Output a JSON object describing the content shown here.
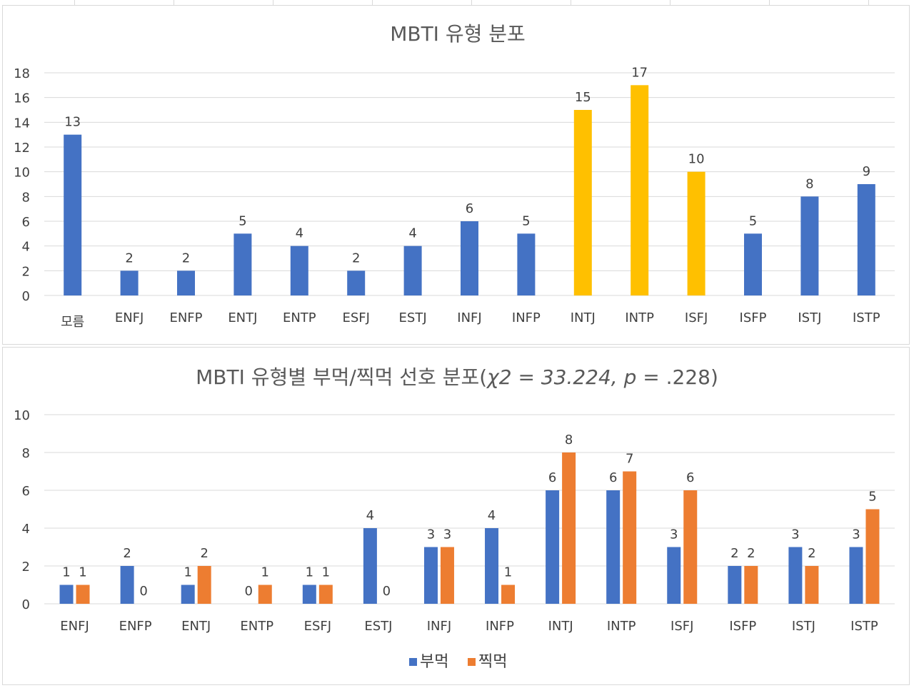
{
  "colors": {
    "blue": "#4472c4",
    "orange": "#ed7d31",
    "gold": "#ffc000",
    "grid": "#d9d9d9",
    "text": "#404040",
    "title": "#595959"
  },
  "chart_data": [
    {
      "type": "bar",
      "title": "MBTI 유형 분포",
      "categories": [
        "모름",
        "ENFJ",
        "ENFP",
        "ENTJ",
        "ENTP",
        "ESFJ",
        "ESTJ",
        "INFJ",
        "INFP",
        "INTJ",
        "INTP",
        "ISFJ",
        "ISFP",
        "ISTJ",
        "ISTP"
      ],
      "values": [
        13,
        2,
        2,
        5,
        4,
        2,
        4,
        6,
        5,
        15,
        17,
        10,
        5,
        8,
        9
      ],
      "highlight": [
        "INTJ",
        "INTP",
        "ISFJ"
      ],
      "ylim": [
        0,
        18
      ],
      "yticks": [
        0,
        2,
        4,
        6,
        8,
        10,
        12,
        14,
        16,
        18
      ],
      "grid": true,
      "legend": "none"
    },
    {
      "type": "bar",
      "title": "MBTI 유형별 부먹/찍먹 선호 분포(",
      "title_stat": "χ2 = 33.224,",
      "title_p": "p",
      "title_tail": " = .228)",
      "categories": [
        "ENFJ",
        "ENFP",
        "ENTJ",
        "ENTP",
        "ESFJ",
        "ESTJ",
        "INFJ",
        "INFP",
        "INTJ",
        "INTP",
        "ISFJ",
        "ISFP",
        "ISTJ",
        "ISTP"
      ],
      "series": [
        {
          "name": "부먹",
          "values": [
            1,
            2,
            1,
            0,
            1,
            4,
            3,
            4,
            6,
            6,
            3,
            2,
            3,
            3
          ]
        },
        {
          "name": "찍먹",
          "values": [
            1,
            0,
            2,
            1,
            1,
            0,
            3,
            1,
            8,
            7,
            6,
            2,
            2,
            5
          ]
        }
      ],
      "ylim": [
        0,
        10
      ],
      "yticks": [
        0,
        2,
        4,
        6,
        8,
        10
      ],
      "grid": true,
      "legend": "bottom-center"
    }
  ]
}
